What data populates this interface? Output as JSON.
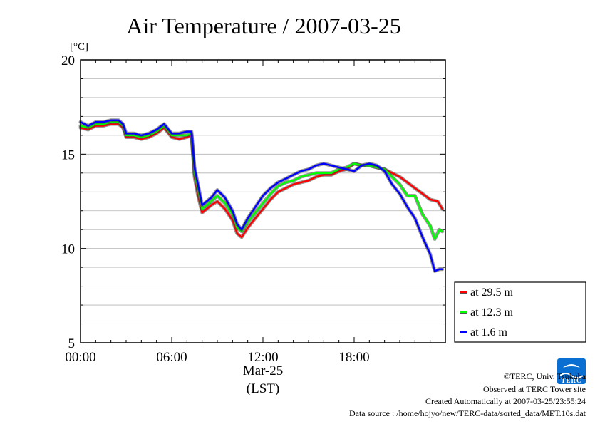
{
  "chart_data": {
    "type": "line",
    "title": "Air Temperature / 2007-03-25",
    "ylabel": "[°C]",
    "xlabel_date": "Mar-25",
    "xlabel_zone": "(LST)",
    "ylim": [
      5,
      20
    ],
    "yticks": [
      5,
      10,
      15,
      20
    ],
    "yticklabels": [
      "5",
      "10",
      "15",
      "20"
    ],
    "xlim_hours": [
      0,
      24
    ],
    "xticks": [
      0,
      6,
      12,
      18
    ],
    "xticklabels": [
      "00:00",
      "06:00",
      "12:00",
      "18:00"
    ],
    "grid": true,
    "legend_position": "right-bottom, outside",
    "series": [
      {
        "name": "at 29.5 m",
        "color": "#ff0000",
        "x": [
          0,
          0.5,
          1,
          1.5,
          2,
          2.5,
          2.8,
          3,
          3.5,
          4,
          4.5,
          5,
          5.5,
          5.8,
          6,
          6.5,
          7,
          7.3,
          7.5,
          7.7,
          8,
          8.3,
          8.6,
          9,
          9.5,
          10,
          10.3,
          10.6,
          11,
          11.5,
          12,
          12.5,
          13,
          13.5,
          14,
          14.5,
          15,
          15.5,
          16,
          16.5,
          17,
          17.5,
          18,
          18.5,
          19,
          19.5,
          20,
          20.5,
          21,
          21.5,
          22,
          22.5,
          23,
          23.5,
          23.8
        ],
        "values": [
          16.4,
          16.3,
          16.5,
          16.5,
          16.6,
          16.6,
          16.4,
          15.9,
          15.9,
          15.8,
          15.9,
          16.1,
          16.4,
          16.1,
          15.9,
          15.8,
          15.9,
          16.0,
          13.8,
          12.9,
          11.9,
          12.1,
          12.3,
          12.5,
          12.1,
          11.5,
          10.8,
          10.6,
          11.1,
          11.6,
          12.1,
          12.6,
          13.0,
          13.2,
          13.4,
          13.5,
          13.6,
          13.8,
          13.9,
          13.9,
          14.1,
          14.2,
          14.5,
          14.4,
          14.4,
          14.3,
          14.2,
          14.0,
          13.8,
          13.5,
          13.2,
          12.9,
          12.6,
          12.5,
          12.1
        ]
      },
      {
        "name": "at 12.3 m",
        "color": "#00ff00",
        "x": [
          0,
          0.5,
          1,
          1.5,
          2,
          2.5,
          2.8,
          3,
          3.5,
          4,
          4.5,
          5,
          5.5,
          5.8,
          6,
          6.5,
          7,
          7.3,
          7.5,
          7.7,
          8,
          8.3,
          8.6,
          9,
          9.5,
          10,
          10.3,
          10.6,
          11,
          11.5,
          12,
          12.5,
          13,
          13.5,
          14,
          14.5,
          15,
          15.5,
          16,
          16.5,
          17,
          17.5,
          18,
          18.5,
          19,
          19.5,
          20,
          20.5,
          21,
          21.5,
          22,
          22.5,
          23,
          23.3,
          23.6,
          23.8
        ],
        "values": [
          16.5,
          16.4,
          16.6,
          16.6,
          16.7,
          16.7,
          16.5,
          16.0,
          16.0,
          15.9,
          16.0,
          16.2,
          16.5,
          16.2,
          16.0,
          16.0,
          16.0,
          16.1,
          14.0,
          13.2,
          12.1,
          12.3,
          12.5,
          12.8,
          12.4,
          11.8,
          11.1,
          10.9,
          11.4,
          11.9,
          12.4,
          12.9,
          13.3,
          13.5,
          13.6,
          13.8,
          13.9,
          14.0,
          14.0,
          14.0,
          14.2,
          14.3,
          14.5,
          14.4,
          14.4,
          14.3,
          14.2,
          13.8,
          13.4,
          12.8,
          12.8,
          11.8,
          11.2,
          10.5,
          11.0,
          10.9
        ]
      },
      {
        "name": "at 1.6 m",
        "color": "#0000ff",
        "x": [
          0,
          0.5,
          1,
          1.5,
          2,
          2.5,
          2.8,
          3,
          3.5,
          4,
          4.5,
          5,
          5.5,
          5.8,
          6,
          6.5,
          7,
          7.3,
          7.5,
          7.7,
          8,
          8.3,
          8.6,
          9,
          9.5,
          10,
          10.3,
          10.6,
          11,
          11.5,
          12,
          12.5,
          13,
          13.5,
          14,
          14.5,
          15,
          15.5,
          16,
          16.5,
          17,
          17.5,
          18,
          18.5,
          19,
          19.5,
          20,
          20.5,
          21,
          21.5,
          22,
          22.5,
          23,
          23.3,
          23.6,
          23.8
        ],
        "values": [
          16.7,
          16.5,
          16.7,
          16.7,
          16.8,
          16.8,
          16.6,
          16.1,
          16.1,
          16.0,
          16.1,
          16.3,
          16.6,
          16.3,
          16.1,
          16.1,
          16.2,
          16.2,
          14.3,
          13.5,
          12.3,
          12.5,
          12.7,
          13.1,
          12.7,
          12.0,
          11.3,
          11.0,
          11.6,
          12.2,
          12.8,
          13.2,
          13.5,
          13.7,
          13.9,
          14.1,
          14.2,
          14.4,
          14.5,
          14.4,
          14.3,
          14.2,
          14.1,
          14.4,
          14.5,
          14.4,
          14.1,
          13.4,
          12.9,
          12.2,
          11.6,
          10.6,
          9.7,
          8.8,
          8.9,
          8.9
        ]
      }
    ]
  },
  "footer": {
    "copyright": "©TERC, Univ. Tsukuba",
    "site": "Observed at TERC Tower site",
    "created": "Created Automatically at 2007-03-25/23:55:24",
    "source": "Data source : /home/hojyo/new/TERC-data/sorted_data/MET.10s.dat"
  },
  "logo": {
    "text": "TERC"
  }
}
